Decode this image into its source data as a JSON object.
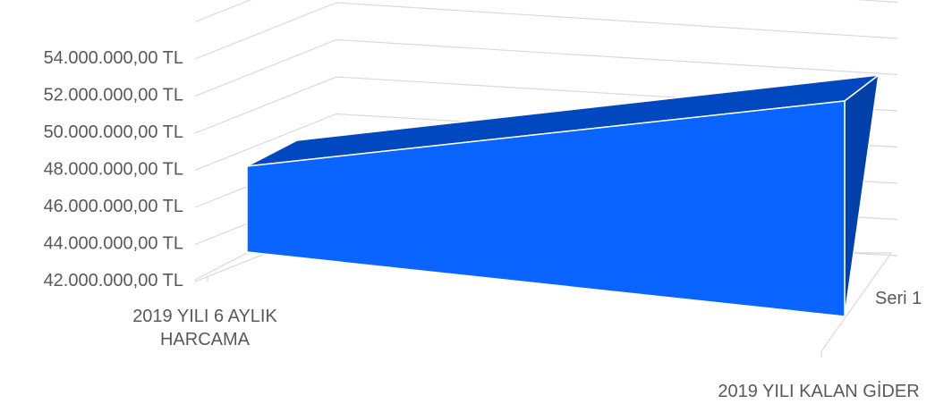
{
  "chart_data": {
    "type": "area",
    "title": "",
    "categories": [
      "2019 YILI 6 AYLIK HARCAMA",
      "2019 YILI KALAN GİDER"
    ],
    "category_label_lines": [
      [
        "2019 YILI 6 AYLIK",
        "HARCAMA"
      ],
      [
        "2019 YILI KALAN GİDER"
      ]
    ],
    "depth_label": "Seri 1",
    "series": [
      {
        "name": "Seri 1",
        "values": [
          47600000,
          53000000
        ]
      }
    ],
    "ylim": [
      42000000,
      54000000
    ],
    "y_ticks": [
      42000000,
      44000000,
      46000000,
      48000000,
      50000000,
      52000000,
      54000000
    ],
    "y_tick_labels": [
      "42.000.000,00 TL",
      "44.000.000,00 TL",
      "46.000.000,00 TL",
      "48.000.000,00 TL",
      "50.000.000,00 TL",
      "52.000.000,00 TL",
      "54.000.000,00 TL"
    ],
    "grid": true,
    "legend": "none",
    "colors": {
      "front": "#0A64FF",
      "top": "#0048C0",
      "side": "#0040A8",
      "grid": "#D9D9D9",
      "text": "#595959"
    }
  }
}
